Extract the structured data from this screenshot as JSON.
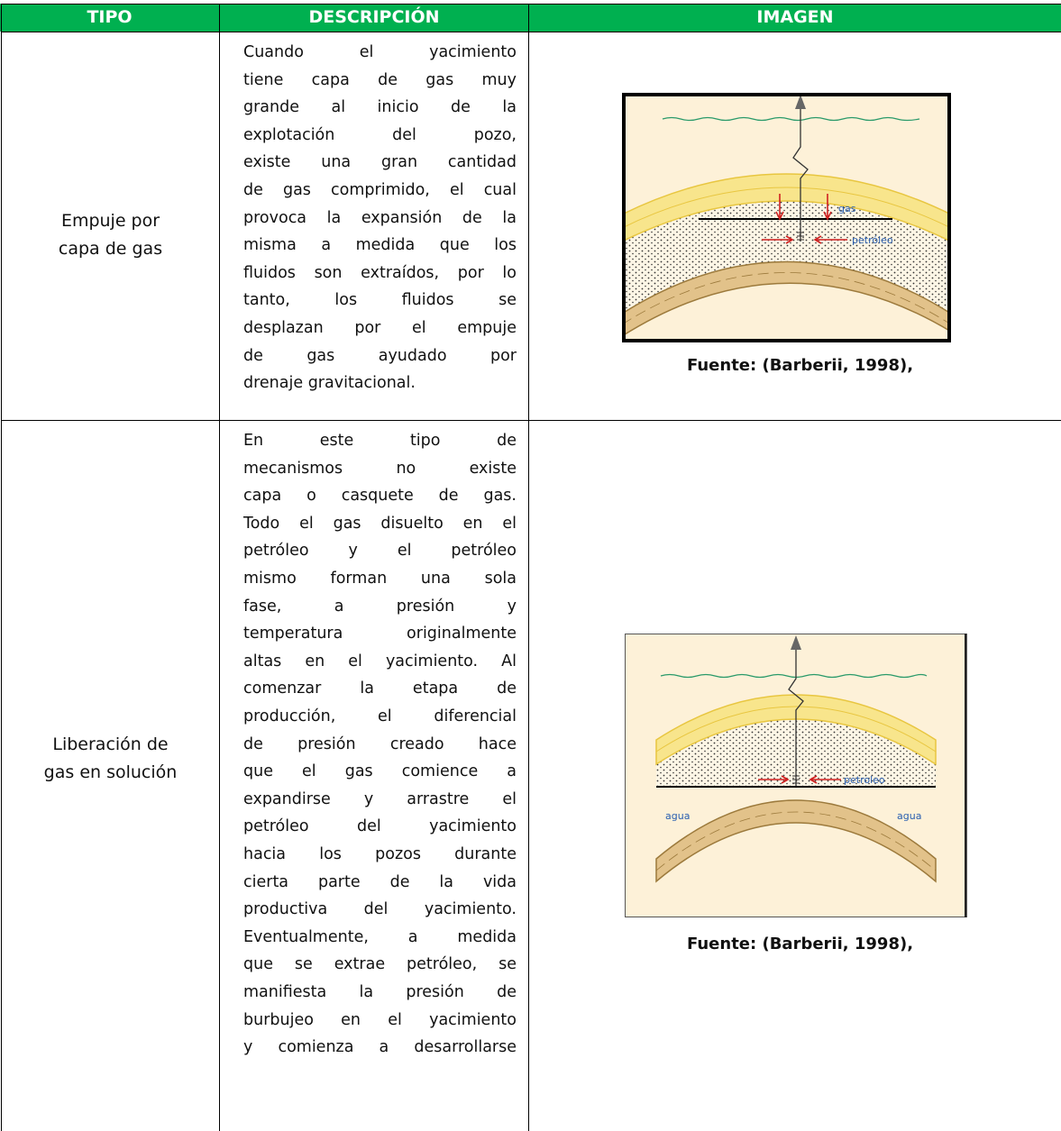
{
  "table": {
    "headers": [
      "TIPO",
      "DESCRIPCIÓN",
      "IMAGEN"
    ],
    "rows": [
      {
        "tipo": [
          "Empuje por",
          "capa de gas"
        ],
        "descripcion": [
          "Cuando el yacimiento",
          "tiene capa de gas muy",
          "grande al inicio de la",
          "explotación del pozo,",
          "existe una gran cantidad",
          "de gas comprimido, el cual",
          "provoca la expansión de la",
          "misma a medida que los",
          "fluidos son extraídos, por lo",
          "tanto, los fluidos se",
          "desplazan por el empuje",
          "de gas ayudado por",
          "drenaje gravitacional."
        ],
        "imagen": {
          "labels": [
            "gas",
            "petróleo"
          ],
          "caption": "Fuente: (Barberii, 1998),"
        }
      },
      {
        "tipo": [
          "Liberación de",
          "gas en solución"
        ],
        "descripcion": [
          "En este tipo de",
          "mecanismos no existe",
          "capa o casquete de gas.",
          "Todo el gas disuelto en el",
          "petróleo y el petróleo",
          "mismo forman una sola",
          "fase, a presión y",
          "temperatura originalmente",
          "altas en el yacimiento. Al",
          "comenzar la etapa de",
          "producción, el diferencial",
          "de presión creado hace",
          "que el gas comience a",
          "expandirse y arrastre el",
          "petróleo del yacimiento",
          "hacia los pozos durante",
          "cierta parte de la vida",
          "productiva del yacimiento.",
          "Eventualmente, a medida",
          "que se extrae petróleo, se",
          "manifiesta la presión de",
          "burbujeo en el yacimiento",
          "y comienza a desarrollarse"
        ],
        "imagen": {
          "labels": [
            "petroleo",
            "agua",
            "agua"
          ],
          "caption": "Fuente: (Barberii, 1998),"
        }
      }
    ]
  }
}
